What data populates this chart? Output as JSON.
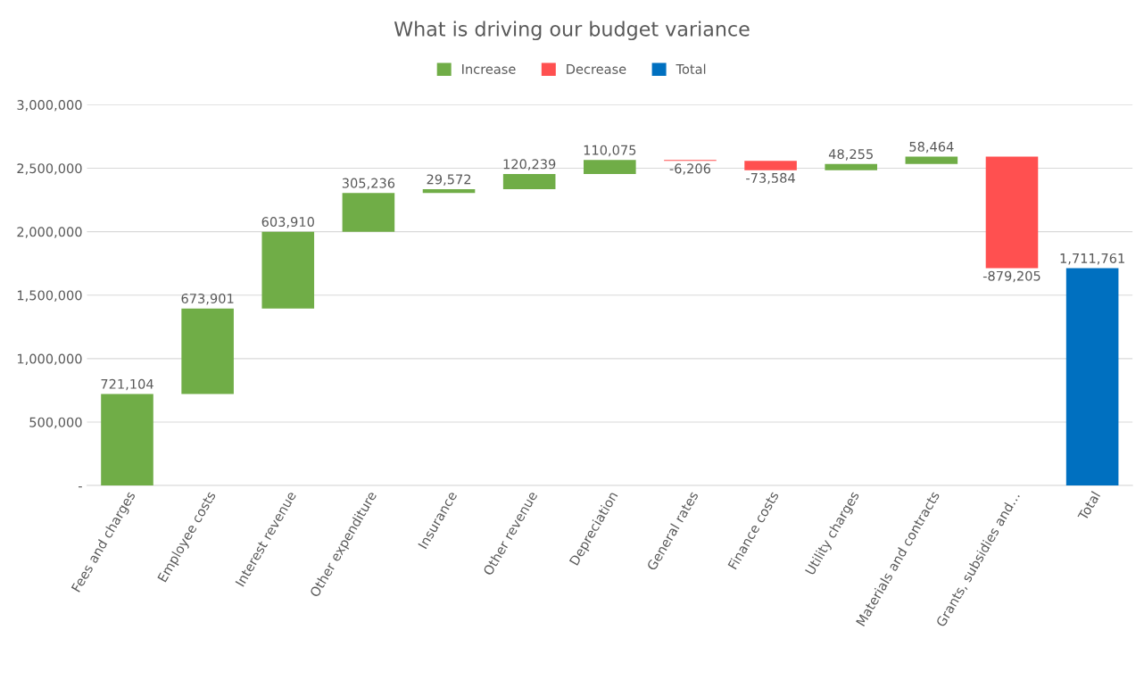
{
  "chart_data": {
    "type": "bar",
    "title": "What is driving our budget variance",
    "categories": [
      "Fees and charges",
      "Employee costs",
      "Interest revenue",
      "Other expenditure",
      "Insurance",
      "Other revenue",
      "Depreciation",
      "General rates",
      "Finance costs",
      "Utility charges",
      "Materials and contracts",
      "Grants, subsidies and…",
      "Total"
    ],
    "series": [
      {
        "name": "Increase",
        "color": "#70ad47",
        "base": [
          0,
          721104,
          1395005,
          1998915,
          2304151,
          2333723,
          2453962,
          null,
          null,
          2484247,
          2532502,
          null,
          null
        ],
        "values": [
          721104,
          673901,
          603910,
          305236,
          29572,
          120239,
          110075,
          null,
          null,
          48255,
          58464,
          null,
          null
        ],
        "value_labels": [
          "721,104",
          "673,901",
          "603,910",
          "305,236",
          "29,572",
          "120,239",
          "110,075",
          null,
          null,
          "48,255",
          "58,464",
          null,
          null
        ]
      },
      {
        "name": "Decrease",
        "color": "#ff5050",
        "base": [
          null,
          null,
          null,
          null,
          null,
          null,
          null,
          2564037,
          2557831,
          null,
          null,
          2590966,
          null
        ],
        "values": [
          null,
          null,
          null,
          null,
          null,
          null,
          null,
          -6206,
          -73584,
          null,
          null,
          -879205,
          null
        ],
        "value_labels": [
          null,
          null,
          null,
          null,
          null,
          null,
          null,
          "-6,206",
          "-73,584",
          null,
          null,
          "-879,205",
          null
        ]
      },
      {
        "name": "Total",
        "color": "#0070c0",
        "base": [
          null,
          null,
          null,
          null,
          null,
          null,
          null,
          null,
          null,
          null,
          null,
          null,
          0
        ],
        "values": [
          null,
          null,
          null,
          null,
          null,
          null,
          null,
          null,
          null,
          null,
          null,
          null,
          1711761
        ],
        "value_labels": [
          null,
          null,
          null,
          null,
          null,
          null,
          null,
          null,
          null,
          null,
          null,
          null,
          "1,711,761"
        ]
      }
    ],
    "ylim": [
      0,
      3000000
    ],
    "yticks": [
      {
        "value": 0,
        "label": "-"
      },
      {
        "value": 500000,
        "label": "500,000"
      },
      {
        "value": 1000000,
        "label": "1,000,000"
      },
      {
        "value": 1500000,
        "label": "1,500,000"
      },
      {
        "value": 2000000,
        "label": "2,000,000"
      },
      {
        "value": 2500000,
        "label": "2,500,000"
      },
      {
        "value": 3000000,
        "label": "3,000,000"
      }
    ],
    "grid": "y",
    "legend": "top"
  }
}
